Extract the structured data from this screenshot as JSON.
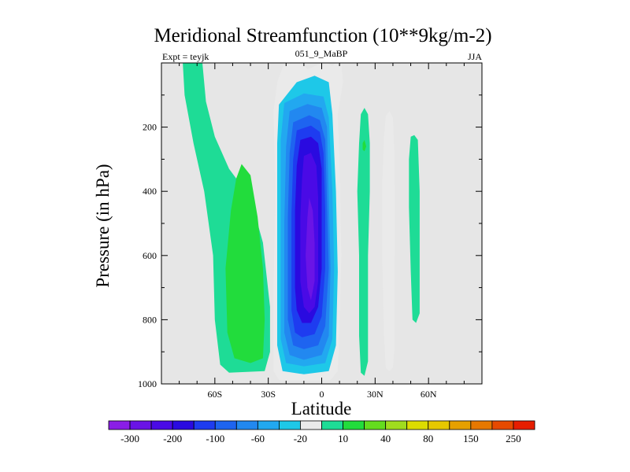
{
  "chart_data": {
    "type": "filled-contour",
    "title": "Meridional Streamfunction (10**9kg/m-2)",
    "subtitle_left": "Expt = teyjk",
    "subtitle_center": "051_9_MaBP",
    "subtitle_right": "JJA",
    "xlabel": "Latitude",
    "ylabel": "Pressure (in hPa)",
    "xlim": [
      -90,
      90
    ],
    "ylim": [
      1000,
      0
    ],
    "x_ticks": [
      -60,
      -30,
      0,
      30,
      60
    ],
    "x_tick_labels": [
      "60S",
      "30S",
      "0",
      "30N",
      "60N"
    ],
    "y_ticks": [
      200,
      400,
      600,
      800,
      1000
    ],
    "y_tick_labels": [
      "200",
      "400",
      "600",
      "800",
      "1000"
    ],
    "colorbar": {
      "levels": [
        -300,
        -250,
        -200,
        -150,
        -100,
        -80,
        -60,
        -40,
        -20,
        -10,
        10,
        20,
        40,
        60,
        80,
        100,
        150,
        200,
        250,
        300
      ],
      "labels": [
        "-300",
        "-200",
        "-100",
        "-60",
        "-20",
        "10",
        "40",
        "80",
        "150",
        "250"
      ],
      "label_levels": [
        -300,
        -200,
        -100,
        -60,
        -20,
        10,
        40,
        80,
        150,
        250
      ],
      "colors": [
        "#8a1ee6",
        "#6a14e6",
        "#4a0ae6",
        "#2a0ae0",
        "#1e3cf0",
        "#1e64f0",
        "#2288f0",
        "#22a8f0",
        "#1ec8e8",
        "#eaeaea",
        "#1edc96",
        "#22dc3c",
        "#64dc1e",
        "#a0dc1e",
        "#dcdc00",
        "#e6c800",
        "#e6a000",
        "#e67800",
        "#e64a00",
        "#e61e00"
      ]
    },
    "background": "#e6e6e6",
    "cells": [
      {
        "name": "nh-far-positive-cell",
        "sign": "positive",
        "max": 10,
        "lat_range": [
          -78,
          -53
        ],
        "p_range": [
          0,
          950
        ]
      },
      {
        "name": "sh-positive-cell",
        "sign": "positive",
        "max": 20,
        "lat_range": [
          -55,
          -28
        ],
        "p_range": [
          320,
          950
        ]
      },
      {
        "name": "hadley-negative-cell",
        "sign": "negative",
        "min": -300,
        "lat_range": [
          -27,
          12
        ],
        "p_range": [
          0,
          1000
        ],
        "core_lat": -5,
        "core_p": 600
      },
      {
        "name": "nh-positive-cell",
        "sign": "positive",
        "max": 20,
        "lat_range": [
          20,
          28
        ],
        "p_range": [
          140,
          980
        ]
      },
      {
        "name": "nh-negative-cell-30n",
        "sign": "negative",
        "min": -20,
        "lat_range": [
          34,
          42
        ],
        "p_range": [
          150,
          960
        ]
      },
      {
        "name": "nh-positive-cell-50n",
        "sign": "positive",
        "max": 10,
        "lat_range": [
          48,
          56
        ],
        "p_range": [
          230,
          810
        ]
      }
    ]
  }
}
